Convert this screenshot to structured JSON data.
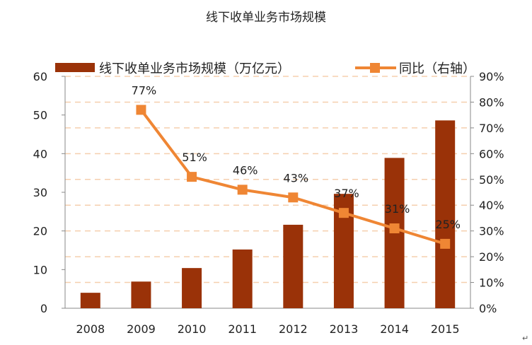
{
  "chart_data": {
    "type": "bar+line",
    "title": "线下收单业务市场规模",
    "categories": [
      "2008",
      "2009",
      "2010",
      "2011",
      "2012",
      "2013",
      "2014",
      "2015"
    ],
    "series": [
      {
        "name": "线下收单业务市场规模（万亿元）",
        "type": "bar",
        "axis": "left",
        "values": [
          4.0,
          6.9,
          10.4,
          15.2,
          21.6,
          29.6,
          38.9,
          48.6
        ]
      },
      {
        "name": "同比（右轴）",
        "type": "line",
        "axis": "right",
        "values": [
          null,
          77,
          51,
          46,
          43,
          37,
          31,
          25
        ],
        "labels": [
          "",
          "77%",
          "51%",
          "46%",
          "43%",
          "37%",
          "31%",
          "25%"
        ]
      }
    ],
    "left_axis": {
      "range": [
        0,
        60
      ],
      "ticks": [
        "0",
        "10",
        "20",
        "30",
        "40",
        "50",
        "60"
      ]
    },
    "right_axis": {
      "range": [
        0,
        90
      ],
      "ticks": [
        "0%",
        "10%",
        "20%",
        "30%",
        "40%",
        "50%",
        "60%",
        "70%",
        "80%",
        "90%"
      ]
    },
    "grid": "dashed horizontal",
    "legend": "top",
    "colors": {
      "bar": "#9a3208",
      "line": "#ef8634",
      "grid": "#f5cfae"
    }
  },
  "mark": "↵"
}
